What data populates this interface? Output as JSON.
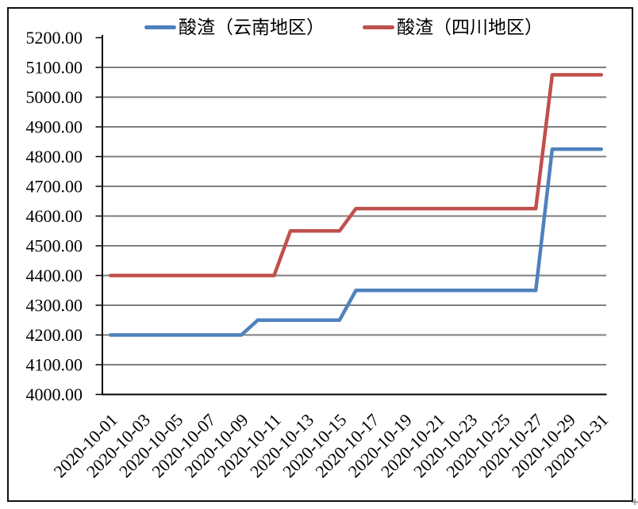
{
  "page": {
    "background": "#ffffff",
    "border_color": "#0f0f0f",
    "corner_artifact_glyph": "+"
  },
  "legend": {
    "items": [
      {
        "label": "酸渣（云南地区）",
        "color": "#4F81BD"
      },
      {
        "label": "酸渣（四川地区）",
        "color": "#C0504D"
      }
    ]
  },
  "chart_data": {
    "type": "line",
    "title": "",
    "xlabel": "",
    "ylabel": "",
    "legend_position": "top",
    "grid": true,
    "gridline_color": "#7E7E7E",
    "axis_color": "#000000",
    "ylim": [
      4000,
      5200
    ],
    "ytick_step": 100,
    "y_ticks": [
      "4000.00",
      "4100.00",
      "4200.00",
      "4300.00",
      "4400.00",
      "4500.00",
      "4600.00",
      "4700.00",
      "4800.00",
      "4900.00",
      "5000.00",
      "5100.00",
      "5200.00"
    ],
    "x": [
      "2020-10-01",
      "2020-10-02",
      "2020-10-03",
      "2020-10-04",
      "2020-10-05",
      "2020-10-06",
      "2020-10-07",
      "2020-10-08",
      "2020-10-09",
      "2020-10-10",
      "2020-10-11",
      "2020-10-12",
      "2020-10-13",
      "2020-10-14",
      "2020-10-15",
      "2020-10-16",
      "2020-10-17",
      "2020-10-18",
      "2020-10-19",
      "2020-10-20",
      "2020-10-21",
      "2020-10-22",
      "2020-10-23",
      "2020-10-24",
      "2020-10-25",
      "2020-10-26",
      "2020-10-27",
      "2020-10-28",
      "2020-10-29",
      "2020-10-30",
      "2020-10-31"
    ],
    "x_tick_labels": [
      "2020-10-01",
      "2020-10-03",
      "2020-10-05",
      "2020-10-07",
      "2020-10-09",
      "2020-10-11",
      "2020-10-13",
      "2020-10-15",
      "2020-10-17",
      "2020-10-19",
      "2020-10-21",
      "2020-10-23",
      "2020-10-25",
      "2020-10-27",
      "2020-10-29",
      "2020-10-31"
    ],
    "x_tick_every": 2,
    "series": [
      {
        "name": "酸渣（云南地区）",
        "color": "#4F81BD",
        "values": [
          4200,
          4200,
          4200,
          4200,
          4200,
          4200,
          4200,
          4200,
          4200,
          4250,
          4250,
          4250,
          4250,
          4250,
          4250,
          4350,
          4350,
          4350,
          4350,
          4350,
          4350,
          4350,
          4350,
          4350,
          4350,
          4350,
          4350,
          4825,
          4825,
          4825,
          4825
        ]
      },
      {
        "name": "酸渣（四川地区）",
        "color": "#C0504D",
        "values": [
          4400,
          4400,
          4400,
          4400,
          4400,
          4400,
          4400,
          4400,
          4400,
          4400,
          4400,
          4550,
          4550,
          4550,
          4550,
          4625,
          4625,
          4625,
          4625,
          4625,
          4625,
          4625,
          4625,
          4625,
          4625,
          4625,
          4625,
          5075,
          5075,
          5075,
          5075
        ]
      }
    ]
  }
}
